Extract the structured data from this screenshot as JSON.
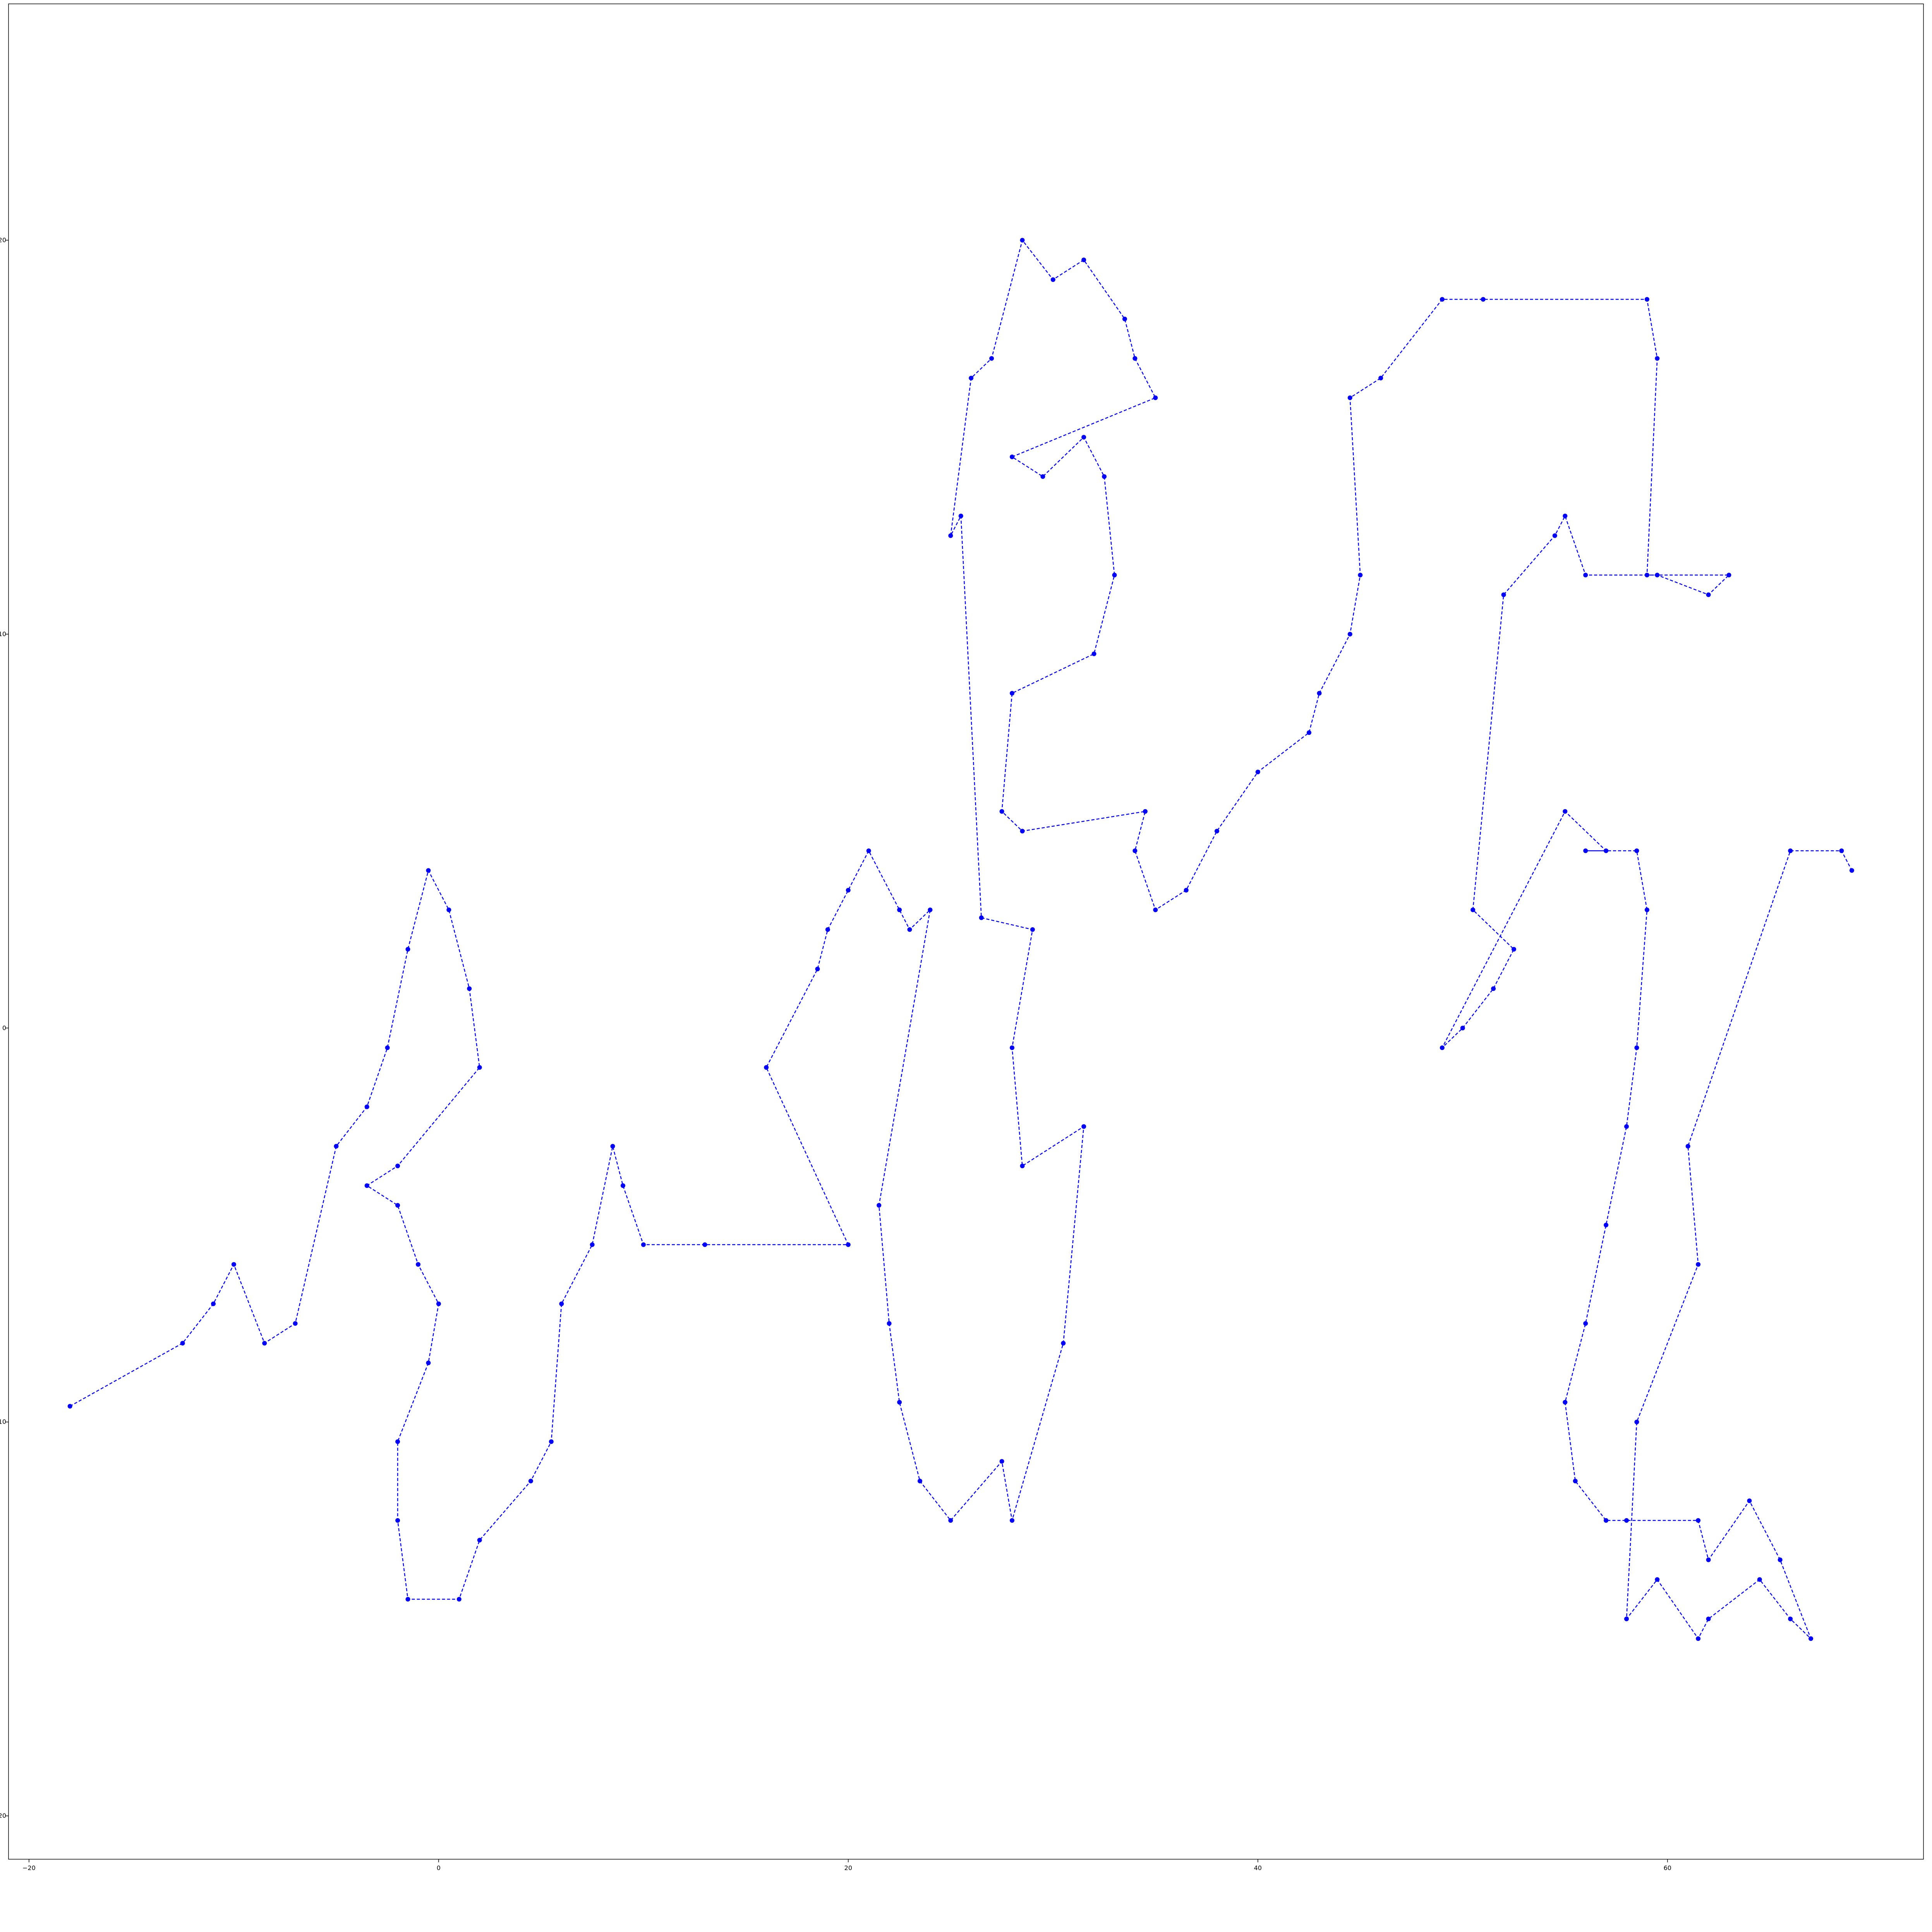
{
  "chart_data": {
    "type": "line",
    "title": "",
    "xlabel": "",
    "ylabel": "",
    "xlim": [
      -21,
      72.5
    ],
    "ylim": [
      -21.1,
      26
    ],
    "grid": false,
    "legend": "none",
    "line_style": "dashed",
    "marker": "circle",
    "color": "#0000ff",
    "x_ticks": [
      -20,
      0,
      20,
      40,
      60
    ],
    "x_tick_labels": [
      "−20",
      "0",
      "20",
      "40",
      "60"
    ],
    "y_ticks": [
      -20,
      -10,
      0,
      10,
      20
    ],
    "y_tick_labels": [
      "−20",
      "−10",
      "0",
      "10",
      "20"
    ],
    "series": [
      {
        "name": "",
        "note_clusters": "approximate traced path through the visible node clusters",
        "x": [
          -18.0,
          -12.5,
          -11.0,
          -10.0,
          -8.5,
          -7.0,
          -5.0,
          -3.5,
          -2.5,
          -1.5,
          -0.5,
          0.5,
          1.5,
          2.0,
          -2.0,
          -3.5,
          -2.0,
          -1.0,
          0.0,
          -0.5,
          -2.0,
          -2.0,
          -1.5,
          1.0,
          2.0,
          4.5,
          5.5,
          6.0,
          7.5,
          8.5,
          9.0,
          10.0,
          13.0,
          20.0,
          16.0,
          18.5,
          19.0,
          20.0,
          21.0,
          22.5,
          23.0,
          24.0,
          21.5,
          22.0,
          22.5,
          23.5,
          25.0,
          27.5,
          28.0,
          30.5,
          31.5,
          28.5,
          28.0,
          29.0,
          26.5,
          25.5,
          25.0,
          26.0,
          27.0,
          28.5,
          30.0,
          31.5,
          33.5,
          34.0,
          35.0,
          28.0,
          29.5,
          31.5,
          32.5,
          33.0,
          32.0,
          28.0,
          27.5,
          28.5,
          34.5,
          34.0,
          35.0,
          36.5,
          38.0,
          40.0,
          42.5,
          43.0,
          44.5,
          45.0,
          44.5,
          46.0,
          49.0,
          51.0,
          59.0,
          59.5,
          59.0,
          59.5,
          62.0,
          63.0,
          56.0,
          55.0,
          54.5,
          52.0,
          50.5,
          52.5,
          51.5,
          50.0,
          49.0,
          55.0,
          57.0,
          56.0,
          58.5,
          59.0,
          58.5,
          58.0,
          57.0,
          56.0,
          55.0,
          55.5,
          57.0,
          58.0,
          61.5,
          62.0,
          64.0,
          65.5,
          67.0,
          66.0,
          64.5,
          62.0,
          61.5,
          59.5,
          58.0,
          58.5,
          61.5,
          61.0,
          66.0,
          68.5,
          69.0
        ],
        "y": [
          -9.6,
          -8.0,
          -7.0,
          -6.0,
          -8.0,
          -7.5,
          -3.0,
          -2.0,
          -0.5,
          2.0,
          4.0,
          3.0,
          1.0,
          -1.0,
          -3.5,
          -4.0,
          -4.5,
          -6.0,
          -7.0,
          -8.5,
          -10.5,
          -12.5,
          -14.5,
          -14.5,
          -13.0,
          -11.5,
          -10.5,
          -7.0,
          -5.5,
          -3.0,
          -4.0,
          -5.5,
          -5.5,
          -5.5,
          -1.0,
          1.5,
          2.5,
          3.5,
          4.5,
          3.0,
          2.5,
          3.0,
          -4.5,
          -7.5,
          -9.5,
          -11.5,
          -12.5,
          -11.0,
          -12.5,
          -8.0,
          -2.5,
          -3.5,
          -0.5,
          2.5,
          2.8,
          13.0,
          12.5,
          16.5,
          17.0,
          20.0,
          19.0,
          19.5,
          18.0,
          17.0,
          16.0,
          14.5,
          14.0,
          15.0,
          14.0,
          11.5,
          9.5,
          8.5,
          5.5,
          5.0,
          5.5,
          4.5,
          3.0,
          3.5,
          5.0,
          6.5,
          7.5,
          8.5,
          10.0,
          11.5,
          16.0,
          16.5,
          18.5,
          18.5,
          18.5,
          17.0,
          11.5,
          11.5,
          11.0,
          11.5,
          11.5,
          13.0,
          12.5,
          11.0,
          3.0,
          2.0,
          1.0,
          0.0,
          -0.5,
          5.5,
          4.5,
          4.5,
          4.5,
          3.0,
          -0.5,
          -2.5,
          -5.0,
          -7.5,
          -9.5,
          -11.5,
          -12.5,
          -12.5,
          -12.5,
          -13.5,
          -12.0,
          -13.5,
          -15.5,
          -15.0,
          -14.0,
          -15.0,
          -15.5,
          -14.0,
          -15.0,
          -10.0,
          -6.0,
          -3.0,
          4.5,
          4.5,
          4.0
        ]
      }
    ]
  }
}
